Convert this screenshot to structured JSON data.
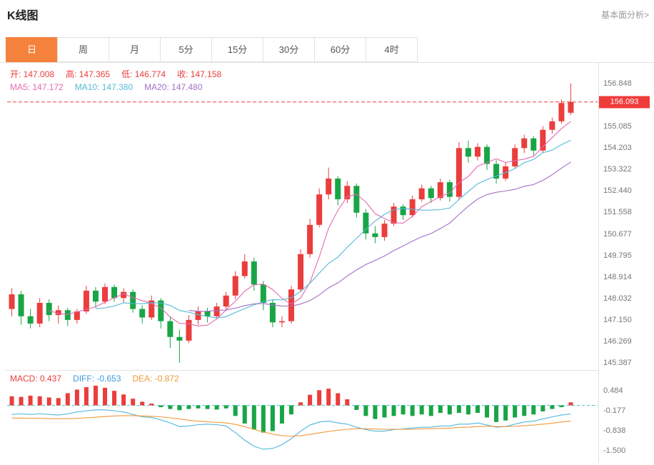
{
  "header": {
    "title": "K线图",
    "link": "基本面分析>"
  },
  "tabs": [
    {
      "label": "日",
      "active": true
    },
    {
      "label": "周",
      "active": false
    },
    {
      "label": "月",
      "active": false
    },
    {
      "label": "5分",
      "active": false
    },
    {
      "label": "15分",
      "active": false
    },
    {
      "label": "30分",
      "active": false
    },
    {
      "label": "60分",
      "active": false
    },
    {
      "label": "4时",
      "active": false
    }
  ],
  "legend": {
    "ohlc": [
      {
        "name": "open",
        "label": "开",
        "value": "147.008"
      },
      {
        "name": "high",
        "label": "高",
        "value": "147.365"
      },
      {
        "name": "low",
        "label": "低",
        "value": "146.774"
      },
      {
        "name": "close",
        "label": "收",
        "value": "147.158"
      }
    ],
    "ma": [
      {
        "name": "ma5",
        "label": "MA5",
        "value": "147.172"
      },
      {
        "name": "ma10",
        "label": "MA10",
        "value": "147.380"
      },
      {
        "name": "ma20",
        "label": "MA20",
        "value": "147.480"
      }
    ],
    "macd": [
      {
        "name": "macd",
        "label": "MACD",
        "value": "0.437"
      },
      {
        "name": "diff",
        "label": "DIFF",
        "value": "-0.653"
      },
      {
        "name": "dea",
        "label": "DEA",
        "value": "-0.872"
      }
    ]
  },
  "axes": {
    "price_labels": [
      "156.848",
      "155.085",
      "154.203",
      "153.322",
      "152.440",
      "151.558",
      "150.677",
      "149.795",
      "148.914",
      "148.032",
      "147.150",
      "146.269",
      "145.387"
    ],
    "current_price": "156.093",
    "macd_labels": [
      "0.484",
      "-0.177",
      "-0.838",
      "-1.500"
    ]
  },
  "colors": {
    "up": "#ea3d3c",
    "down": "#18a546",
    "ma5": "#e36bb0",
    "ma10": "#56b9d8",
    "ma20": "#a36fc8",
    "diff": "#4fb6dc",
    "diff_text": "#3f9be0",
    "dea": "#f2993c",
    "price_line": "#f03b3b",
    "zero_line": "#49c4d3",
    "border": "#e2e2e2",
    "axis_text": "#777777",
    "tab_active_bg": "#f5823c"
  },
  "chart_data": {
    "type": "candlestick",
    "title": "K线图",
    "interval": "日",
    "ohlc_format": [
      "open",
      "high",
      "low",
      "close"
    ],
    "y_axis": {
      "min": 145.09,
      "max": 157.7
    },
    "current_price": 156.093,
    "ma_periods": [
      5,
      10,
      20
    ],
    "candles": [
      [
        147.6,
        148.45,
        147.3,
        148.2
      ],
      [
        148.2,
        148.35,
        146.95,
        147.3
      ],
      [
        147.3,
        147.6,
        146.8,
        147.0
      ],
      [
        147.0,
        148.05,
        146.85,
        147.85
      ],
      [
        147.85,
        148.0,
        147.1,
        147.35
      ],
      [
        147.35,
        147.75,
        147.0,
        147.55
      ],
      [
        147.55,
        147.65,
        146.9,
        147.15
      ],
      [
        147.15,
        147.6,
        147.0,
        147.5
      ],
      [
        147.5,
        148.55,
        147.4,
        148.35
      ],
      [
        148.35,
        148.5,
        147.65,
        147.9
      ],
      [
        147.9,
        148.65,
        147.8,
        148.5
      ],
      [
        148.5,
        148.6,
        147.9,
        148.05
      ],
      [
        148.05,
        148.45,
        147.85,
        148.3
      ],
      [
        148.3,
        148.4,
        147.45,
        147.6
      ],
      [
        147.6,
        147.75,
        147.0,
        147.25
      ],
      [
        147.25,
        148.15,
        147.15,
        147.95
      ],
      [
        147.95,
        148.05,
        146.8,
        147.1
      ],
      [
        147.1,
        147.3,
        146.0,
        146.45
      ],
      [
        146.45,
        146.75,
        145.39,
        146.3
      ],
      [
        146.3,
        147.35,
        146.2,
        147.15
      ],
      [
        147.15,
        147.7,
        146.95,
        147.5
      ],
      [
        147.5,
        147.65,
        147.05,
        147.3
      ],
      [
        147.3,
        147.85,
        147.2,
        147.7
      ],
      [
        147.7,
        148.3,
        147.55,
        148.15
      ],
      [
        148.15,
        149.15,
        148.0,
        148.95
      ],
      [
        148.95,
        149.85,
        148.85,
        149.55
      ],
      [
        149.55,
        149.7,
        148.35,
        148.6
      ],
      [
        148.6,
        148.75,
        147.55,
        147.85
      ],
      [
        147.85,
        148.0,
        146.85,
        147.05
      ],
      [
        147.05,
        147.3,
        146.85,
        147.1
      ],
      [
        147.1,
        148.55,
        147.0,
        148.4
      ],
      [
        148.4,
        150.05,
        148.3,
        149.85
      ],
      [
        149.85,
        151.3,
        149.7,
        151.05
      ],
      [
        151.05,
        152.55,
        150.95,
        152.3
      ],
      [
        152.3,
        153.4,
        152.1,
        152.95
      ],
      [
        152.95,
        153.05,
        151.85,
        152.1
      ],
      [
        152.1,
        152.85,
        151.95,
        152.65
      ],
      [
        152.65,
        152.75,
        151.35,
        151.55
      ],
      [
        151.55,
        151.7,
        150.45,
        150.7
      ],
      [
        150.7,
        151.0,
        150.3,
        150.55
      ],
      [
        150.55,
        151.25,
        150.4,
        151.1
      ],
      [
        151.1,
        151.95,
        151.0,
        151.8
      ],
      [
        151.8,
        151.9,
        151.25,
        151.45
      ],
      [
        151.45,
        152.25,
        151.35,
        152.1
      ],
      [
        152.1,
        152.7,
        152.0,
        152.55
      ],
      [
        152.55,
        152.65,
        151.95,
        152.15
      ],
      [
        152.15,
        152.95,
        152.05,
        152.8
      ],
      [
        152.8,
        152.9,
        152.0,
        152.2
      ],
      [
        152.2,
        154.45,
        152.1,
        154.2
      ],
      [
        154.2,
        154.5,
        153.6,
        153.85
      ],
      [
        153.85,
        154.4,
        153.7,
        154.25
      ],
      [
        154.25,
        154.35,
        153.3,
        153.55
      ],
      [
        153.55,
        153.7,
        152.75,
        152.95
      ],
      [
        152.95,
        153.6,
        152.85,
        153.45
      ],
      [
        153.45,
        154.35,
        153.35,
        154.2
      ],
      [
        154.2,
        154.75,
        154.0,
        154.6
      ],
      [
        154.6,
        154.7,
        153.9,
        154.1
      ],
      [
        154.1,
        155.1,
        154.0,
        154.95
      ],
      [
        154.95,
        155.45,
        154.8,
        155.3
      ],
      [
        155.3,
        156.2,
        155.2,
        156.05
      ],
      [
        155.65,
        156.85,
        155.55,
        156.09
      ]
    ],
    "macd": {
      "y_axis": {
        "min": -1.92,
        "max": 0.7
      },
      "hist": [
        0.3,
        0.28,
        0.32,
        0.3,
        0.26,
        0.24,
        0.4,
        0.52,
        0.6,
        0.65,
        0.58,
        0.48,
        0.36,
        0.22,
        0.12,
        0.06,
        -0.06,
        -0.12,
        -0.16,
        -0.12,
        -0.1,
        -0.12,
        -0.14,
        -0.1,
        -0.35,
        -0.6,
        -0.8,
        -0.9,
        -0.85,
        -0.6,
        -0.3,
        0.1,
        0.35,
        0.5,
        0.55,
        0.4,
        0.2,
        -0.15,
        -0.35,
        -0.45,
        -0.4,
        -0.35,
        -0.3,
        -0.35,
        -0.3,
        -0.35,
        -0.25,
        -0.3,
        -0.25,
        -0.3,
        -0.25,
        -0.4,
        -0.55,
        -0.5,
        -0.4,
        -0.35,
        -0.3,
        -0.2,
        -0.12,
        -0.06,
        0.1
      ],
      "diff": [
        -0.3,
        -0.28,
        -0.3,
        -0.28,
        -0.3,
        -0.32,
        -0.28,
        -0.22,
        -0.18,
        -0.15,
        -0.15,
        -0.18,
        -0.22,
        -0.3,
        -0.38,
        -0.4,
        -0.48,
        -0.58,
        -0.7,
        -0.68,
        -0.64,
        -0.62,
        -0.64,
        -0.68,
        -0.9,
        -1.15,
        -1.35,
        -1.45,
        -1.42,
        -1.3,
        -1.1,
        -0.85,
        -0.65,
        -0.55,
        -0.52,
        -0.58,
        -0.62,
        -0.72,
        -0.8,
        -0.85,
        -0.85,
        -0.8,
        -0.78,
        -0.75,
        -0.72,
        -0.72,
        -0.68,
        -0.68,
        -0.62,
        -0.62,
        -0.58,
        -0.65,
        -0.72,
        -0.7,
        -0.62,
        -0.55,
        -0.52,
        -0.45,
        -0.38,
        -0.32,
        -0.28
      ],
      "dea": [
        -0.42,
        -0.42,
        -0.43,
        -0.43,
        -0.44,
        -0.44,
        -0.44,
        -0.43,
        -0.41,
        -0.39,
        -0.37,
        -0.35,
        -0.34,
        -0.34,
        -0.35,
        -0.36,
        -0.38,
        -0.41,
        -0.45,
        -0.49,
        -0.52,
        -0.54,
        -0.56,
        -0.58,
        -0.63,
        -0.7,
        -0.79,
        -0.88,
        -0.95,
        -1.0,
        -1.02,
        -1.0,
        -0.96,
        -0.91,
        -0.86,
        -0.82,
        -0.79,
        -0.77,
        -0.77,
        -0.78,
        -0.79,
        -0.79,
        -0.79,
        -0.79,
        -0.78,
        -0.77,
        -0.76,
        -0.75,
        -0.73,
        -0.72,
        -0.7,
        -0.69,
        -0.7,
        -0.7,
        -0.69,
        -0.67,
        -0.65,
        -0.62,
        -0.59,
        -0.55,
        -0.52
      ]
    }
  }
}
